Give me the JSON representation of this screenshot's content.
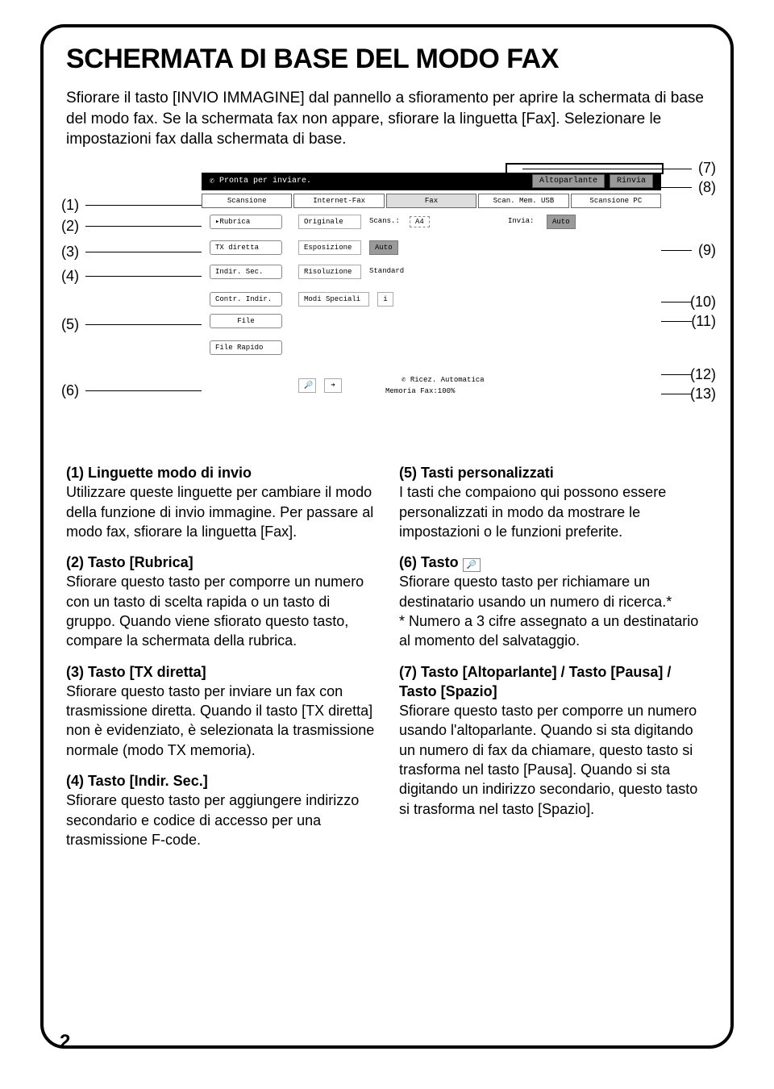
{
  "page_number": "2",
  "title": "SCHERMATA DI BASE DEL MODO FAX",
  "intro": "Sfiorare il tasto [INVIO IMMAGINE] dal pannello a sfioramento per aprire la schermata di base del modo fax. Se la schermata fax non appare, sfiorare la linguetta [Fax]. Selezionare le impostazioni fax dalla schermata di base.",
  "screen": {
    "status": "Pronta per inviare.",
    "top_buttons": {
      "speaker": "Altoparlante",
      "resend": "Rinvia"
    },
    "tabs": [
      "Scansione",
      "Internet-Fax",
      "Fax",
      "Scan. Mem. USB",
      "Scansione PC"
    ],
    "left_buttons": {
      "rubrica": "Rubrica",
      "tx_diretta": "TX diretta",
      "indir_sec": "Indir. Sec.",
      "contr_indir": "Contr. Indir.",
      "file": "File",
      "file_rapido": "File Rapido"
    },
    "mid_labels": {
      "originale": "Originale",
      "scans": "Scans.:",
      "scans_v": "A4",
      "invia": "Invia:",
      "invia_v": "Auto",
      "esposizione": "Esposizione",
      "esp_v": "Auto",
      "risoluzione": "Risoluzione",
      "ris_v": "Standard",
      "modi": "Modi Speciali",
      "info": "i"
    },
    "footer": {
      "ricez": "Ricez. Automatica",
      "mem": "Memoria Fax:100%"
    }
  },
  "callouts_left": [
    "(1)",
    "(2)",
    "(3)",
    "(4)",
    "(5)",
    "(6)"
  ],
  "callouts_right": [
    "(7)",
    "(8)",
    "(9)",
    "(10)",
    "(11)",
    "(12)",
    "(13)"
  ],
  "desc_left": [
    {
      "n": "(1)",
      "t": "Linguette modo di invio",
      "b": "Utilizzare queste linguette per cambiare il modo della funzione di invio immagine. Per passare al modo fax, sfiorare la linguetta [Fax]."
    },
    {
      "n": "(2)",
      "t": "Tasto [Rubrica]",
      "b": "Sfiorare questo tasto per comporre un numero con un tasto di scelta rapida o un tasto di gruppo. Quando viene sfiorato questo tasto, compare la schermata della rubrica."
    },
    {
      "n": "(3)",
      "t": "Tasto [TX diretta]",
      "b": "Sfiorare questo tasto per inviare un fax con trasmissione diretta. Quando il tasto [TX diretta] non è evidenziato, è selezionata la trasmissione normale (modo TX memoria)."
    },
    {
      "n": "(4)",
      "t": "Tasto [Indir. Sec.]",
      "b": "Sfiorare questo tasto per aggiungere indirizzo secondario e codice di accesso per una trasmissione F-code."
    }
  ],
  "desc_right": [
    {
      "n": "(5)",
      "t": "Tasti personalizzati",
      "b": "I tasti che compaiono qui possono essere personalizzati in modo da mostrare le impostazioni o le funzioni preferite."
    },
    {
      "n": "(6)",
      "t": "Tasto ",
      "icon": true,
      "b": "Sfiorare questo tasto per richiamare un destinatario usando un numero di ricerca.*\n* Numero a 3 cifre assegnato a un destinatario al momento del salvataggio."
    },
    {
      "n": "(7)",
      "t": "Tasto [Altoparlante] / Tasto [Pausa] / Tasto [Spazio]",
      "b": "Sfiorare questo tasto per comporre un numero usando l'altoparlante. Quando si sta digitando un numero di fax da chiamare, questo tasto si trasforma nel tasto [Pausa]. Quando si sta digitando un indirizzo secondario, questo tasto si trasforma nel tasto [Spazio]."
    }
  ]
}
